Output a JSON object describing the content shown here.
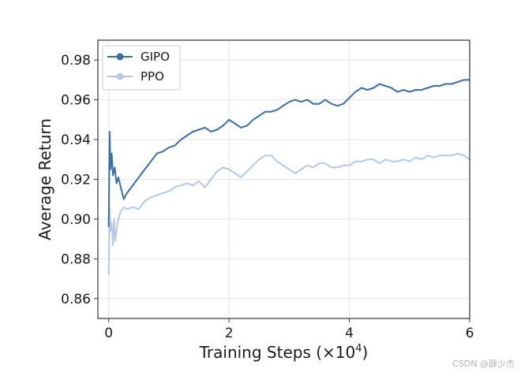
{
  "chart_data": {
    "type": "line",
    "xlabel": "Training Steps (×10",
    "xlabel_exp": "4",
    "xlabel_close": ")",
    "ylabel": "Average Return",
    "xlim": [
      -0.18,
      6.0
    ],
    "ylim": [
      0.85,
      0.99
    ],
    "xticks": [
      0,
      2,
      4,
      6
    ],
    "yticks": [
      0.86,
      0.88,
      0.9,
      0.92,
      0.94,
      0.96,
      0.98
    ],
    "ytick_labels": [
      "0.86",
      "0.88",
      "0.90",
      "0.92",
      "0.94",
      "0.96",
      "0.98"
    ],
    "xtick_labels": [
      "0",
      "2",
      "4",
      "6"
    ],
    "grid": true,
    "legend_position": "top-left",
    "series": [
      {
        "name": "GIPO",
        "color": "#3b6ea8",
        "x": [
          0,
          0.015,
          0.03,
          0.05,
          0.07,
          0.1,
          0.13,
          0.16,
          0.2,
          0.25,
          0.3,
          0.4,
          0.5,
          0.6,
          0.7,
          0.8,
          0.9,
          1.0,
          1.1,
          1.2,
          1.3,
          1.4,
          1.5,
          1.6,
          1.7,
          1.8,
          1.9,
          2.0,
          2.1,
          2.2,
          2.3,
          2.4,
          2.5,
          2.6,
          2.7,
          2.8,
          2.9,
          3.0,
          3.1,
          3.2,
          3.3,
          3.4,
          3.5,
          3.6,
          3.7,
          3.8,
          3.9,
          4.0,
          4.1,
          4.2,
          4.3,
          4.4,
          4.5,
          4.6,
          4.7,
          4.8,
          4.9,
          5.0,
          5.1,
          5.2,
          5.3,
          5.4,
          5.5,
          5.6,
          5.7,
          5.8,
          5.9,
          6.0
        ],
        "values": [
          0.896,
          0.944,
          0.925,
          0.933,
          0.922,
          0.926,
          0.918,
          0.921,
          0.916,
          0.91,
          0.913,
          0.917,
          0.921,
          0.925,
          0.929,
          0.933,
          0.934,
          0.936,
          0.937,
          0.94,
          0.942,
          0.944,
          0.945,
          0.946,
          0.944,
          0.945,
          0.947,
          0.95,
          0.948,
          0.946,
          0.947,
          0.95,
          0.952,
          0.954,
          0.954,
          0.955,
          0.957,
          0.959,
          0.96,
          0.959,
          0.96,
          0.958,
          0.958,
          0.96,
          0.958,
          0.957,
          0.958,
          0.961,
          0.964,
          0.966,
          0.965,
          0.966,
          0.968,
          0.967,
          0.966,
          0.964,
          0.965,
          0.964,
          0.965,
          0.965,
          0.966,
          0.967,
          0.967,
          0.968,
          0.968,
          0.969,
          0.97,
          0.97
        ]
      },
      {
        "name": "PPO",
        "color": "#b3c9e4",
        "x": [
          0,
          0.015,
          0.03,
          0.05,
          0.07,
          0.09,
          0.11,
          0.14,
          0.17,
          0.2,
          0.25,
          0.3,
          0.4,
          0.5,
          0.6,
          0.7,
          0.8,
          0.9,
          1.0,
          1.1,
          1.2,
          1.3,
          1.4,
          1.5,
          1.6,
          1.7,
          1.8,
          1.9,
          2.0,
          2.1,
          2.2,
          2.3,
          2.4,
          2.5,
          2.6,
          2.7,
          2.8,
          2.9,
          3.0,
          3.1,
          3.2,
          3.3,
          3.4,
          3.5,
          3.6,
          3.7,
          3.8,
          3.9,
          4.0,
          4.1,
          4.2,
          4.3,
          4.4,
          4.5,
          4.6,
          4.7,
          4.8,
          4.9,
          5.0,
          5.1,
          5.2,
          5.3,
          5.4,
          5.5,
          5.6,
          5.7,
          5.8,
          5.9,
          6.0
        ],
        "values": [
          0.872,
          0.905,
          0.894,
          0.898,
          0.887,
          0.9,
          0.889,
          0.897,
          0.901,
          0.904,
          0.906,
          0.905,
          0.906,
          0.905,
          0.909,
          0.911,
          0.912,
          0.913,
          0.914,
          0.916,
          0.917,
          0.918,
          0.917,
          0.919,
          0.916,
          0.92,
          0.924,
          0.926,
          0.925,
          0.923,
          0.921,
          0.924,
          0.927,
          0.93,
          0.932,
          0.932,
          0.929,
          0.927,
          0.925,
          0.923,
          0.925,
          0.927,
          0.926,
          0.928,
          0.928,
          0.926,
          0.926,
          0.927,
          0.927,
          0.929,
          0.929,
          0.93,
          0.93,
          0.928,
          0.93,
          0.929,
          0.929,
          0.93,
          0.929,
          0.931,
          0.93,
          0.932,
          0.931,
          0.932,
          0.932,
          0.932,
          0.933,
          0.932,
          0.93
        ]
      }
    ]
  },
  "watermark": "CSDN @薛少杰"
}
